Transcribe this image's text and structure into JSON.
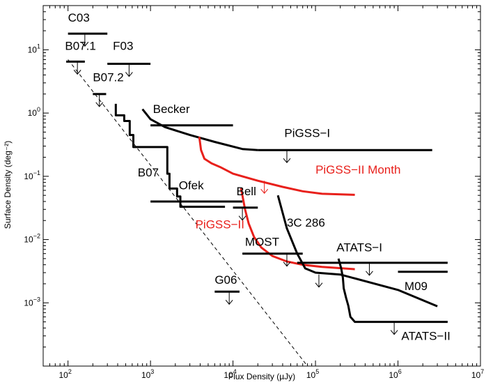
{
  "chart_data": {
    "type": "line",
    "title": "",
    "xlabel": "Flux Density (µJy)",
    "ylabel": "Surface Density (deg⁻²)",
    "xscale": "log",
    "yscale": "log",
    "xlim": [
      50,
      10000000
    ],
    "ylim": [
      0.0001,
      50
    ],
    "x_ticks": [
      {
        "value": 100,
        "label": "10",
        "exp": "2"
      },
      {
        "value": 1000,
        "label": "10",
        "exp": "3"
      },
      {
        "value": 10000,
        "label": "10",
        "exp": "4"
      },
      {
        "value": 100000,
        "label": "10",
        "exp": "5"
      },
      {
        "value": 1000000,
        "label": "10",
        "exp": "6"
      },
      {
        "value": 10000000,
        "label": "10",
        "exp": "7"
      }
    ],
    "y_ticks": [
      {
        "value": 0.001,
        "label": "10",
        "exp": "−3"
      },
      {
        "value": 0.01,
        "label": "10",
        "exp": "−2"
      },
      {
        "value": 0.1,
        "label": "10",
        "exp": "−1"
      },
      {
        "value": 1,
        "label": "10",
        "exp": "0"
      },
      {
        "value": 10,
        "label": "10",
        "exp": "1"
      }
    ],
    "reference_line": {
      "name": "euclidean-slope",
      "style": "dashed",
      "color": "#000000",
      "x": [
        100,
        80000
      ],
      "y": [
        7,
        0.0001
      ]
    },
    "series": [
      {
        "name": "B07",
        "color": "#000000",
        "x": [
          380,
          380,
          480,
          480,
          560,
          560,
          620,
          620,
          1600,
          1600,
          1700,
          1700,
          2100,
          2100,
          2300,
          2300,
          8000
        ],
        "y": [
          1.4,
          0.92,
          0.92,
          0.75,
          0.75,
          0.45,
          0.45,
          0.29,
          0.29,
          0.11,
          0.11,
          0.064,
          0.064,
          0.048,
          0.048,
          0.033,
          0.033
        ]
      },
      {
        "name": "Becker",
        "color": "#000000",
        "x": [
          800,
          1000,
          1500,
          3000,
          6000,
          13000,
          20000
        ],
        "y": [
          1.15,
          0.8,
          0.6,
          0.45,
          0.35,
          0.27,
          0.26
        ]
      },
      {
        "name": "PiGSS-I",
        "color": "#000000",
        "x": [
          20000,
          2600000
        ],
        "y": [
          0.26,
          0.26
        ]
      },
      {
        "name": "PiGSS-II Month",
        "color": "#e8201b",
        "x": [
          3900,
          4100,
          4500,
          5500,
          7000,
          10000,
          20000,
          40000,
          70000,
          120000,
          300000
        ],
        "y": [
          0.42,
          0.26,
          0.19,
          0.16,
          0.14,
          0.11,
          0.085,
          0.068,
          0.058,
          0.053,
          0.051
        ]
      },
      {
        "name": "PiGSS-II",
        "color": "#e8201b",
        "x": [
          12500,
          13000,
          14000,
          15500,
          18000,
          22000,
          30000,
          45000,
          70000,
          120000,
          300000
        ],
        "y": [
          0.065,
          0.05,
          0.03,
          0.018,
          0.011,
          0.0075,
          0.0055,
          0.0045,
          0.004,
          0.0037,
          0.0034
        ]
      },
      {
        "name": "3C 286",
        "color": "#000000",
        "x": [
          35000,
          45000,
          60000,
          75000,
          100000,
          200000,
          1000000,
          3000000
        ],
        "y": [
          0.05,
          0.015,
          0.006,
          0.0035,
          0.003,
          0.0028,
          0.0016,
          0.00088
        ]
      },
      {
        "name": "ATATS-II",
        "color": "#000000",
        "x": [
          190000,
          205000,
          215000,
          220000,
          235000,
          250000,
          265000,
          300000,
          4000000
        ],
        "y": [
          0.005,
          0.0035,
          0.0025,
          0.0017,
          0.0012,
          0.0009,
          0.0006,
          0.0005,
          0.0005
        ]
      }
    ],
    "limits": [
      {
        "name": "C03",
        "x1": 100,
        "x2": 300,
        "y": 18,
        "xa": 160,
        "label": "C03",
        "lx": 100,
        "ly": 28,
        "color": "#000000"
      },
      {
        "name": "B07.1",
        "x1": 95,
        "x2": 160,
        "y": 6.5,
        "xa": 130,
        "label": "B07.1",
        "lx": 92,
        "ly": 10,
        "color": "#000000"
      },
      {
        "name": "F03",
        "x1": 300,
        "x2": 1000,
        "y": 6,
        "xa": 550,
        "label": "F03",
        "lx": 350,
        "ly": 10,
        "color": "#000000"
      },
      {
        "name": "B07.2",
        "x1": 200,
        "x2": 290,
        "y": 2,
        "xa": 240,
        "label": "B07.2",
        "lx": 200,
        "ly": 3.2,
        "color": "#000000"
      },
      {
        "name": "Becker-limit",
        "x1": 1000,
        "x2": 10000,
        "y": 0.64,
        "xa": null,
        "label": "Becker",
        "lx": 1070,
        "ly": 1.0,
        "color": "#000000"
      },
      {
        "name": "PiGSS-I-limit",
        "x1": null,
        "x2": null,
        "y": 0.26,
        "xa": 45000,
        "label": "PiGSS−I",
        "lx": 42000,
        "ly": 0.42,
        "color": "#000000"
      },
      {
        "name": "PiGSS-II-Month-limit",
        "x1": null,
        "x2": null,
        "y": 0.085,
        "xa": 24000,
        "label": "PiGSS−II Month",
        "lx": 100000,
        "ly": 0.11,
        "color": "#e8201b"
      },
      {
        "name": "Ofek",
        "x1": 1000,
        "x2": 13000,
        "y": 0.04,
        "xa": null,
        "label": "Ofek",
        "lx": 2200,
        "ly": 0.062,
        "color": "#000000"
      },
      {
        "name": "Bell",
        "x1": 10000,
        "x2": 20000,
        "y": 0.032,
        "xa": 13000,
        "label": "Bell",
        "lx": 11000,
        "ly": 0.05,
        "color": "#000000"
      },
      {
        "name": "B07-label",
        "x1": null,
        "x2": null,
        "y": null,
        "xa": null,
        "label": "B07",
        "lx": 700,
        "ly": 0.1,
        "color": "#000000"
      },
      {
        "name": "PiGSS-II-label",
        "x1": null,
        "x2": null,
        "y": null,
        "xa": null,
        "label": "PiGSS−II",
        "lx": 3500,
        "ly": 0.015,
        "color": "#e8201b"
      },
      {
        "name": "3C286-label",
        "x1": null,
        "x2": null,
        "y": null,
        "xa": null,
        "label": "3C 286",
        "lx": 45000,
        "ly": 0.016,
        "color": "#000000"
      },
      {
        "name": "MOST",
        "x1": 13000,
        "x2": 70000,
        "y": 0.006,
        "xa": 45000,
        "label": "MOST",
        "lx": 14000,
        "ly": 0.008,
        "color": "#000000"
      },
      {
        "name": "ATATS-I",
        "x1": 60000,
        "x2": 4000000,
        "y": 0.0043,
        "xa": 450000,
        "label": "ATATS−I",
        "lx": 180000,
        "ly": 0.0065,
        "color": "#000000"
      },
      {
        "name": "3C286-limit",
        "x1": null,
        "x2": null,
        "y": 0.0028,
        "xa": 110000,
        "label": "",
        "lx": null,
        "ly": null,
        "color": "#000000"
      },
      {
        "name": "M09",
        "x1": 1000000,
        "x2": 4000000,
        "y": 0.0031,
        "xa": null,
        "label": "M09",
        "lx": 1200000,
        "ly": 0.0016,
        "color": "#000000"
      },
      {
        "name": "G06",
        "x1": 6000,
        "x2": 12000,
        "y": 0.0015,
        "xa": 9000,
        "label": "G06",
        "lx": 6000,
        "ly": 0.002,
        "color": "#000000"
      },
      {
        "name": "ATATS-II-limit",
        "x1": null,
        "x2": null,
        "y": 0.0005,
        "xa": 900000,
        "label": "ATATS−II",
        "lx": 1100000,
        "ly": 0.00026,
        "color": "#000000"
      }
    ]
  }
}
